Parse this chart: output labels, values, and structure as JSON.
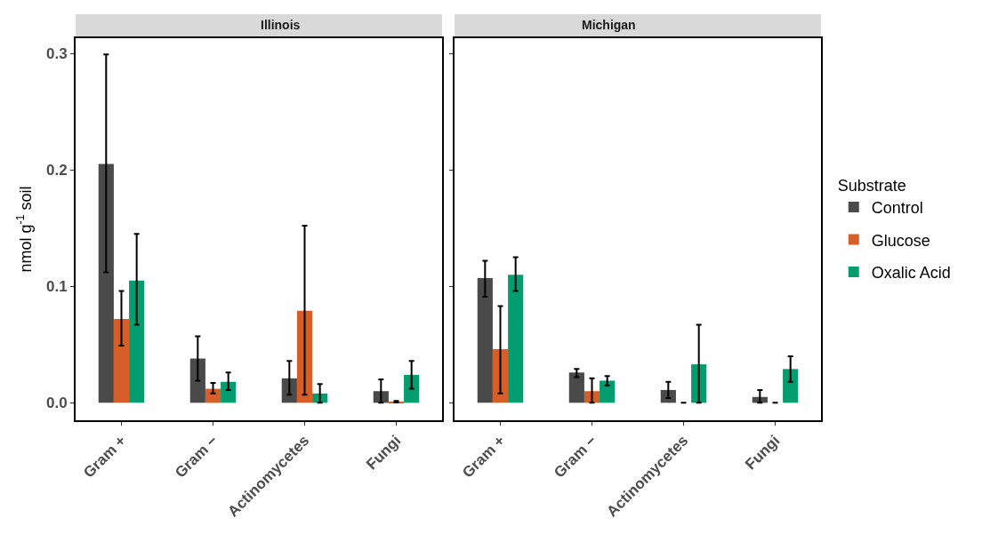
{
  "chart_data": [
    {
      "type": "bar",
      "title": "Illinois",
      "ylabel": "nmol g$^{-1}$ soil",
      "categories": [
        "Gram +",
        "Gram −",
        "Actinomycetes",
        "Fungi"
      ],
      "ylim": [
        -0.015,
        0.313
      ],
      "yticks": [
        {
          "value": 0,
          "label": "0.0"
        },
        0.1,
        0.2,
        0.3
      ],
      "legend": "right",
      "legend_title": "Substrate",
      "series": [
        {
          "name": "Control",
          "color": "#4a4a4a",
          "values": [
            0.205,
            0.038,
            0.021,
            0.01
          ],
          "errors": [
            [
              0.112,
              0.299
            ],
            [
              0.019,
              0.057
            ],
            [
              0.007,
              0.036
            ],
            [
              0.0,
              0.02
            ]
          ]
        },
        {
          "name": "Glucose",
          "color": "#d55e29",
          "values": [
            0.072,
            0.012,
            0.079,
            0.001
          ],
          "errors": [
            [
              0.049,
              0.096
            ],
            [
              0.008,
              0.017
            ],
            [
              0.007,
              0.152
            ],
            [
              0.0005,
              0.0015
            ]
          ]
        },
        {
          "name": "Oxalic Acid",
          "color": "#039d6f",
          "values": [
            0.105,
            0.018,
            0.008,
            0.024
          ],
          "errors": [
            [
              0.067,
              0.145
            ],
            [
              0.011,
              0.026
            ],
            [
              0.0,
              0.016
            ],
            [
              0.012,
              0.036
            ]
          ]
        }
      ]
    },
    {
      "type": "bar",
      "title": "Michigan",
      "categories": [
        "Gram +",
        "Gram −",
        "Actinomycetes",
        "Fungi"
      ],
      "ylim": [
        -0.015,
        0.313
      ],
      "yticks": [
        0,
        0.1,
        0.2,
        0.3
      ],
      "tick_labels": "x",
      "series": [
        {
          "color": "#4a4a4a",
          "values": [
            0.107,
            0.026,
            0.011,
            0.005
          ],
          "errors": [
            [
              0.091,
              0.122
            ],
            [
              0.022,
              0.029
            ],
            [
              0.004,
              0.018
            ],
            [
              0.0,
              0.011
            ]
          ]
        },
        {
          "color": "#d55e29",
          "values": [
            0.046,
            0.01,
            0.0,
            0.0
          ],
          "errors": [
            [
              0.008,
              0.083
            ],
            [
              0.0,
              0.021
            ],
            [
              0.0,
              0.0
            ],
            [
              0.0,
              0.0
            ]
          ]
        },
        {
          "color": "#039d6f",
          "values": [
            0.11,
            0.019,
            0.033,
            0.029
          ],
          "errors": [
            [
              0.096,
              0.125
            ],
            [
              0.015,
              0.023
            ],
            [
              0.0,
              0.067
            ],
            [
              0.018,
              0.04
            ]
          ]
        }
      ]
    }
  ]
}
